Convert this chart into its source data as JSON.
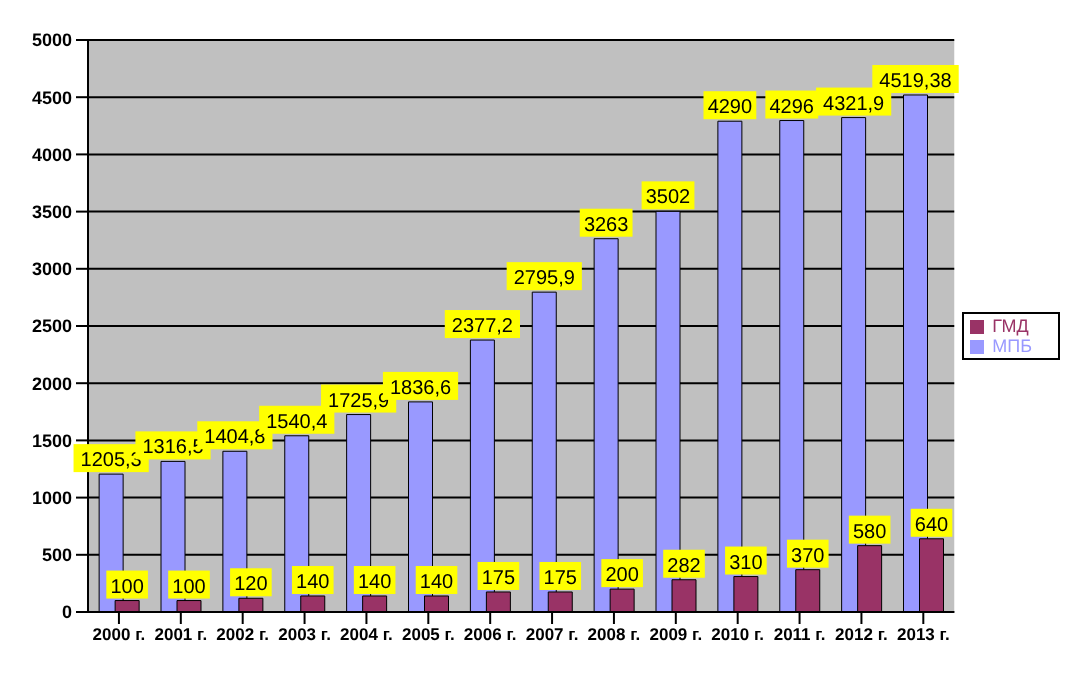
{
  "chart_data": {
    "type": "bar",
    "categories": [
      "2000 г.",
      "2001 г.",
      "2002 г.",
      "2003 г.",
      "2004 г.",
      "2005 г.",
      "2006 г.",
      "2007 г.",
      "2008 г.",
      "2009 г.",
      "2010 г.",
      "2011 г.",
      "2012 г.",
      "2013 г."
    ],
    "series": [
      {
        "name": "МПБ",
        "color": "#9999ff",
        "values": [
          1205.3,
          1316.5,
          1404.8,
          1540.4,
          1725.9,
          1836.6,
          2377.2,
          2795.9,
          3263,
          3502,
          4290,
          4296,
          4321.9,
          4519.38
        ],
        "value_labels": [
          "1205,3",
          "1316,5",
          "1404,8",
          "1540,4",
          "1725,9",
          "1836,6",
          "2377,2",
          "2795,9",
          "3263",
          "3502",
          "4290",
          "4296",
          "4321,9",
          "4519,38"
        ]
      },
      {
        "name": "ГМД",
        "color": "#993366",
        "values": [
          100,
          100,
          120,
          140,
          140,
          140,
          175,
          175,
          200,
          282,
          310,
          370,
          580,
          640
        ],
        "value_labels": [
          "100",
          "100",
          "120",
          "140",
          "140",
          "140",
          "175",
          "175",
          "200",
          "282",
          "310",
          "370",
          "580",
          "640"
        ]
      }
    ],
    "ylim": [
      0,
      5000
    ],
    "yticks": [
      0,
      500,
      1000,
      1500,
      2000,
      2500,
      3000,
      3500,
      4000,
      4500,
      5000
    ],
    "grid": "y",
    "legend": "right"
  }
}
